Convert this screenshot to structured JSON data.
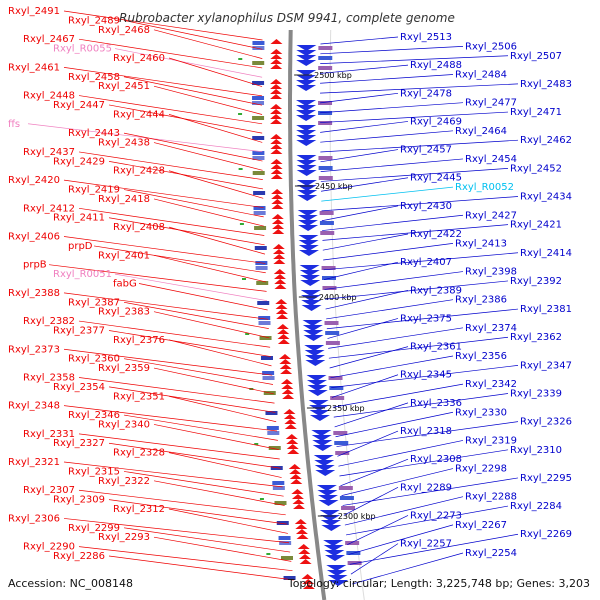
{
  "title": "Rubrobacter xylanophilus DSM 9941, complete genome",
  "footer": {
    "accession": "Accession: NC_008148",
    "topology": "Topology: circular; Length: 3,225,748 bp; Genes: 3,203"
  },
  "colors": {
    "left_label": "#ee0000",
    "right_label": "#0000cc",
    "rna_left": "#f080c0",
    "rna_right": "#00c0f0",
    "backbone": "#888888",
    "tick": "#33aa33"
  },
  "scale": [
    {
      "label": "2500 kbp"
    },
    {
      "label": "2450 kbp"
    },
    {
      "label": "2400 kbp"
    },
    {
      "label": "2350 kbp"
    },
    {
      "label": "2300 kbp"
    }
  ],
  "left_labels": [
    {
      "text": "Rxyl_2491",
      "kind": "gene"
    },
    {
      "text": "Rxyl_2489",
      "kind": "gene"
    },
    {
      "text": "Rxyl_2468",
      "kind": "gene"
    },
    {
      "text": "Rxyl_2467",
      "kind": "gene"
    },
    {
      "text": "Rxyl_R0055",
      "kind": "rna"
    },
    {
      "text": "Rxyl_2460",
      "kind": "gene"
    },
    {
      "text": "Rxyl_2461",
      "kind": "gene"
    },
    {
      "text": "Rxyl_2458",
      "kind": "gene"
    },
    {
      "text": "Rxyl_2451",
      "kind": "gene"
    },
    {
      "text": "Rxyl_2448",
      "kind": "gene"
    },
    {
      "text": "Rxyl_2447",
      "kind": "gene"
    },
    {
      "text": "Rxyl_2444",
      "kind": "gene"
    },
    {
      "text": "ffs",
      "kind": "rna"
    },
    {
      "text": "Rxyl_2443",
      "kind": "gene"
    },
    {
      "text": "Rxyl_2438",
      "kind": "gene"
    },
    {
      "text": "Rxyl_2437",
      "kind": "gene"
    },
    {
      "text": "Rxyl_2429",
      "kind": "gene"
    },
    {
      "text": "Rxyl_2428",
      "kind": "gene"
    },
    {
      "text": "Rxyl_2420",
      "kind": "gene"
    },
    {
      "text": "Rxyl_2419",
      "kind": "gene"
    },
    {
      "text": "Rxyl_2418",
      "kind": "gene"
    },
    {
      "text": "Rxyl_2412",
      "kind": "gene"
    },
    {
      "text": "Rxyl_2411",
      "kind": "gene"
    },
    {
      "text": "Rxyl_2408",
      "kind": "gene"
    },
    {
      "text": "Rxyl_2406",
      "kind": "gene"
    },
    {
      "text": "prpD",
      "kind": "gene"
    },
    {
      "text": "Rxyl_2401",
      "kind": "gene"
    },
    {
      "text": "prpB",
      "kind": "gene"
    },
    {
      "text": "Rxyl_R0051",
      "kind": "rna"
    },
    {
      "text": "fabG",
      "kind": "gene"
    },
    {
      "text": "Rxyl_2388",
      "kind": "gene"
    },
    {
      "text": "Rxyl_2387",
      "kind": "gene"
    },
    {
      "text": "Rxyl_2383",
      "kind": "gene"
    },
    {
      "text": "Rxyl_2382",
      "kind": "gene"
    },
    {
      "text": "Rxyl_2377",
      "kind": "gene"
    },
    {
      "text": "Rxyl_2376",
      "kind": "gene"
    },
    {
      "text": "Rxyl_2373",
      "kind": "gene"
    },
    {
      "text": "Rxyl_2360",
      "kind": "gene"
    },
    {
      "text": "Rxyl_2359",
      "kind": "gene"
    },
    {
      "text": "Rxyl_2358",
      "kind": "gene"
    },
    {
      "text": "Rxyl_2354",
      "kind": "gene"
    },
    {
      "text": "Rxyl_2351",
      "kind": "gene"
    },
    {
      "text": "Rxyl_2348",
      "kind": "gene"
    },
    {
      "text": "Rxyl_2346",
      "kind": "gene"
    },
    {
      "text": "Rxyl_2340",
      "kind": "gene"
    },
    {
      "text": "Rxyl_2331",
      "kind": "gene"
    },
    {
      "text": "Rxyl_2327",
      "kind": "gene"
    },
    {
      "text": "Rxyl_2328",
      "kind": "gene"
    },
    {
      "text": "Rxyl_2321",
      "kind": "gene"
    },
    {
      "text": "Rxyl_2315",
      "kind": "gene"
    },
    {
      "text": "Rxyl_2322",
      "kind": "gene"
    },
    {
      "text": "Rxyl_2307",
      "kind": "gene"
    },
    {
      "text": "Rxyl_2309",
      "kind": "gene"
    },
    {
      "text": "Rxyl_2312",
      "kind": "gene"
    },
    {
      "text": "Rxyl_2306",
      "kind": "gene"
    },
    {
      "text": "Rxyl_2299",
      "kind": "gene"
    },
    {
      "text": "Rxyl_2293",
      "kind": "gene"
    },
    {
      "text": "Rxyl_2290",
      "kind": "gene"
    },
    {
      "text": "Rxyl_2286",
      "kind": "gene"
    }
  ],
  "right_labels": [
    {
      "text": "Rxyl_2513",
      "kind": "gene"
    },
    {
      "text": "Rxyl_2506",
      "kind": "gene"
    },
    {
      "text": "Rxyl_2507",
      "kind": "gene"
    },
    {
      "text": "Rxyl_2488",
      "kind": "gene"
    },
    {
      "text": "Rxyl_2484",
      "kind": "gene"
    },
    {
      "text": "Rxyl_2483",
      "kind": "gene"
    },
    {
      "text": "Rxyl_2478",
      "kind": "gene"
    },
    {
      "text": "Rxyl_2477",
      "kind": "gene"
    },
    {
      "text": "Rxyl_2471",
      "kind": "gene"
    },
    {
      "text": "Rxyl_2469",
      "kind": "gene"
    },
    {
      "text": "Rxyl_2464",
      "kind": "gene"
    },
    {
      "text": "Rxyl_2462",
      "kind": "gene"
    },
    {
      "text": "Rxyl_2457",
      "kind": "gene"
    },
    {
      "text": "Rxyl_2454",
      "kind": "gene"
    },
    {
      "text": "Rxyl_2452",
      "kind": "gene"
    },
    {
      "text": "Rxyl_2445",
      "kind": "gene"
    },
    {
      "text": "Rxyl_R0052",
      "kind": "rna"
    },
    {
      "text": "Rxyl_2434",
      "kind": "gene"
    },
    {
      "text": "Rxyl_2430",
      "kind": "gene"
    },
    {
      "text": "Rxyl_2427",
      "kind": "gene"
    },
    {
      "text": "Rxyl_2421",
      "kind": "gene"
    },
    {
      "text": "Rxyl_2422",
      "kind": "gene"
    },
    {
      "text": "Rxyl_2413",
      "kind": "gene"
    },
    {
      "text": "Rxyl_2414",
      "kind": "gene"
    },
    {
      "text": "Rxyl_2407",
      "kind": "gene"
    },
    {
      "text": "Rxyl_2398",
      "kind": "gene"
    },
    {
      "text": "Rxyl_2392",
      "kind": "gene"
    },
    {
      "text": "Rxyl_2389",
      "kind": "gene"
    },
    {
      "text": "Rxyl_2386",
      "kind": "gene"
    },
    {
      "text": "Rxyl_2381",
      "kind": "gene"
    },
    {
      "text": "Rxyl_2375",
      "kind": "gene"
    },
    {
      "text": "Rxyl_2374",
      "kind": "gene"
    },
    {
      "text": "Rxyl_2362",
      "kind": "gene"
    },
    {
      "text": "Rxyl_2361",
      "kind": "gene"
    },
    {
      "text": "Rxyl_2356",
      "kind": "gene"
    },
    {
      "text": "Rxyl_2347",
      "kind": "gene"
    },
    {
      "text": "Rxyl_2345",
      "kind": "gene"
    },
    {
      "text": "Rxyl_2342",
      "kind": "gene"
    },
    {
      "text": "Rxyl_2339",
      "kind": "gene"
    },
    {
      "text": "Rxyl_2336",
      "kind": "gene"
    },
    {
      "text": "Rxyl_2330",
      "kind": "gene"
    },
    {
      "text": "Rxyl_2326",
      "kind": "gene"
    },
    {
      "text": "Rxyl_2318",
      "kind": "gene"
    },
    {
      "text": "Rxyl_2319",
      "kind": "gene"
    },
    {
      "text": "Rxyl_2310",
      "kind": "gene"
    },
    {
      "text": "Rxyl_2308",
      "kind": "gene"
    },
    {
      "text": "Rxyl_2298",
      "kind": "gene"
    },
    {
      "text": "Rxyl_2295",
      "kind": "gene"
    },
    {
      "text": "Rxyl_2289",
      "kind": "gene"
    },
    {
      "text": "Rxyl_2288",
      "kind": "gene"
    },
    {
      "text": "Rxyl_2284",
      "kind": "gene"
    },
    {
      "text": "Rxyl_2273",
      "kind": "gene"
    },
    {
      "text": "Rxyl_2267",
      "kind": "gene"
    },
    {
      "text": "Rxyl_2269",
      "kind": "gene"
    },
    {
      "text": "Rxyl_2257",
      "kind": "gene"
    },
    {
      "text": "Rxyl_2254",
      "kind": "gene"
    }
  ]
}
